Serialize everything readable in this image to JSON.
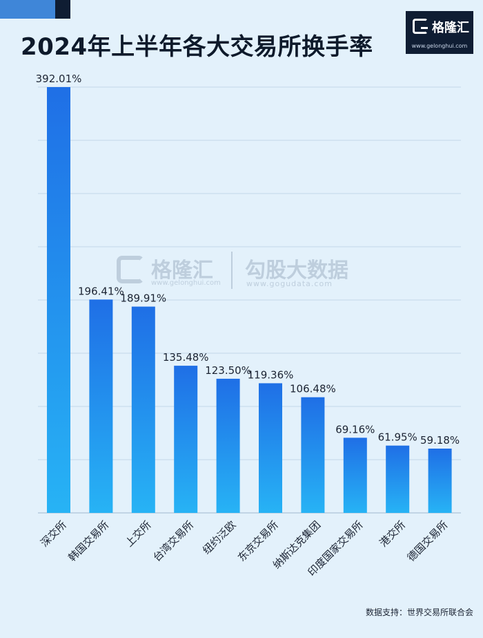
{
  "header": {
    "title": "2024年上半年各大交易所换手率"
  },
  "logo": {
    "name": "格隆汇",
    "url": "www.gelonghui.com"
  },
  "watermark": {
    "name1": "格隆汇",
    "url1": "www.gelonghui.com",
    "name2": "勾股大数据",
    "url2": "www.gogudata.com"
  },
  "source": "数据支持：世界交易所联合会",
  "colors": {
    "background": "#e3f1fb",
    "bar_top": "#1f6fe6",
    "bar_bottom": "#27b3f5",
    "grid": "#c3d6e8",
    "title": "#0e1a2b"
  },
  "chart_data": {
    "type": "bar",
    "title": "2024年上半年各大交易所换手率",
    "xlabel": "",
    "ylabel": "",
    "ylim": [
      0,
      392.01
    ],
    "grid": true,
    "categories": [
      "深交所",
      "韩国交易所",
      "上交所",
      "台湾交易所",
      "纽约泛欧",
      "东京交易所",
      "纳斯达克集团",
      "印度国家交易所",
      "港交所",
      "德国交易所"
    ],
    "values": [
      392.01,
      196.41,
      189.91,
      135.48,
      123.5,
      119.36,
      106.48,
      69.16,
      61.95,
      59.18
    ],
    "labels": [
      "392.01%",
      "196.41%",
      "189.91%",
      "135.48%",
      "123.50%",
      "119.36%",
      "106.48%",
      "69.16%",
      "61.95%",
      "59.18%"
    ]
  }
}
